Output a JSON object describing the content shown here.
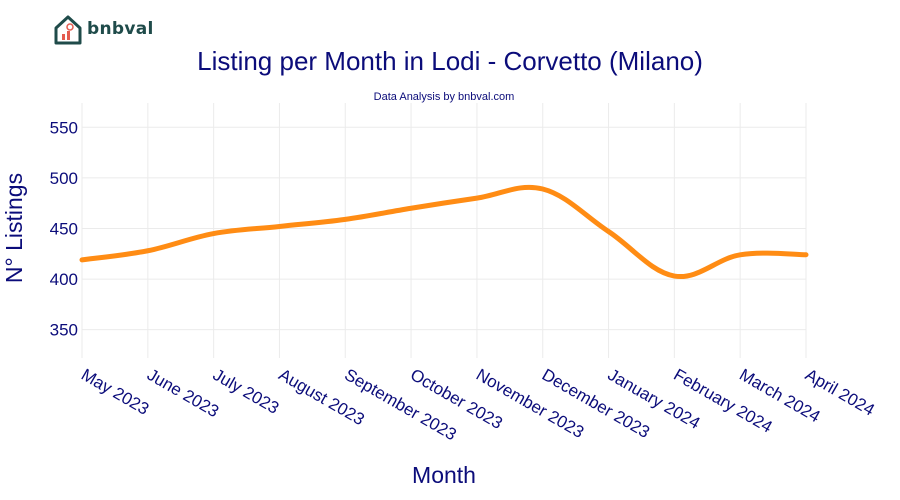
{
  "logo": {
    "text": "bnbval"
  },
  "colors": {
    "line": "#ff8c14",
    "text": "#0b0c7a",
    "grid": "#ebebeb",
    "logo": "#1f4b4a",
    "logo_accent": "#e45b4f"
  },
  "chart_data": {
    "type": "line",
    "title": "Listing per Month in Lodi - Corvetto (Milano)",
    "subtitle": "Data Analysis by bnbval.com",
    "xlabel": "Month",
    "ylabel": "N° Listings",
    "categories": [
      "May 2023",
      "June 2023",
      "July 2023",
      "August 2023",
      "September 2023",
      "October 2023",
      "November 2023",
      "December 2023",
      "January 2024",
      "February 2024",
      "March 2024",
      "April 2024"
    ],
    "series": [
      {
        "values": [
          419,
          428,
          445,
          452,
          459,
          470,
          480,
          489,
          447,
          403,
          424,
          424
        ]
      }
    ],
    "ylim": [
      322,
      574
    ],
    "yticks": [
      350,
      400,
      450,
      500,
      550
    ],
    "grid": true,
    "legend": "none"
  }
}
